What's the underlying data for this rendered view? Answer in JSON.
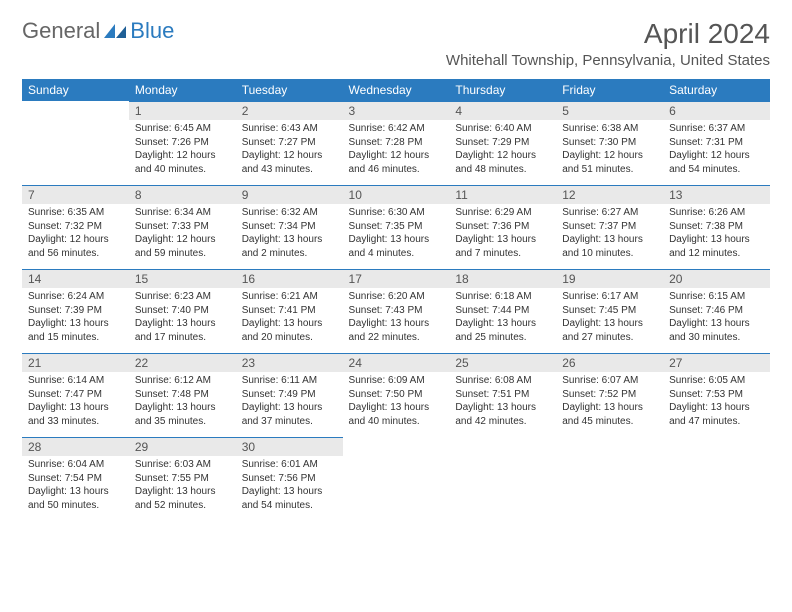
{
  "logo": {
    "text1": "General",
    "text2": "Blue"
  },
  "title": "April 2024",
  "subtitle": "Whitehall Township, Pennsylvania, United States",
  "colors": {
    "header_bg": "#2b7bbf",
    "header_fg": "#ffffff",
    "daynum_bg": "#e9e9e9",
    "daynum_fg": "#555555",
    "border": "#2b7bbf",
    "text": "#333333",
    "page_bg": "#ffffff"
  },
  "fontsize": {
    "title": 28,
    "subtitle": 15,
    "header": 12,
    "daynum": 12,
    "body": 10
  },
  "dayNames": [
    "Sunday",
    "Monday",
    "Tuesday",
    "Wednesday",
    "Thursday",
    "Friday",
    "Saturday"
  ],
  "startOffset": 1,
  "daysInMonth": 30,
  "days": {
    "1": {
      "sunrise": "6:45 AM",
      "sunset": "7:26 PM",
      "daylight": "12 hours and 40 minutes."
    },
    "2": {
      "sunrise": "6:43 AM",
      "sunset": "7:27 PM",
      "daylight": "12 hours and 43 minutes."
    },
    "3": {
      "sunrise": "6:42 AM",
      "sunset": "7:28 PM",
      "daylight": "12 hours and 46 minutes."
    },
    "4": {
      "sunrise": "6:40 AM",
      "sunset": "7:29 PM",
      "daylight": "12 hours and 48 minutes."
    },
    "5": {
      "sunrise": "6:38 AM",
      "sunset": "7:30 PM",
      "daylight": "12 hours and 51 minutes."
    },
    "6": {
      "sunrise": "6:37 AM",
      "sunset": "7:31 PM",
      "daylight": "12 hours and 54 minutes."
    },
    "7": {
      "sunrise": "6:35 AM",
      "sunset": "7:32 PM",
      "daylight": "12 hours and 56 minutes."
    },
    "8": {
      "sunrise": "6:34 AM",
      "sunset": "7:33 PM",
      "daylight": "12 hours and 59 minutes."
    },
    "9": {
      "sunrise": "6:32 AM",
      "sunset": "7:34 PM",
      "daylight": "13 hours and 2 minutes."
    },
    "10": {
      "sunrise": "6:30 AM",
      "sunset": "7:35 PM",
      "daylight": "13 hours and 4 minutes."
    },
    "11": {
      "sunrise": "6:29 AM",
      "sunset": "7:36 PM",
      "daylight": "13 hours and 7 minutes."
    },
    "12": {
      "sunrise": "6:27 AM",
      "sunset": "7:37 PM",
      "daylight": "13 hours and 10 minutes."
    },
    "13": {
      "sunrise": "6:26 AM",
      "sunset": "7:38 PM",
      "daylight": "13 hours and 12 minutes."
    },
    "14": {
      "sunrise": "6:24 AM",
      "sunset": "7:39 PM",
      "daylight": "13 hours and 15 minutes."
    },
    "15": {
      "sunrise": "6:23 AM",
      "sunset": "7:40 PM",
      "daylight": "13 hours and 17 minutes."
    },
    "16": {
      "sunrise": "6:21 AM",
      "sunset": "7:41 PM",
      "daylight": "13 hours and 20 minutes."
    },
    "17": {
      "sunrise": "6:20 AM",
      "sunset": "7:43 PM",
      "daylight": "13 hours and 22 minutes."
    },
    "18": {
      "sunrise": "6:18 AM",
      "sunset": "7:44 PM",
      "daylight": "13 hours and 25 minutes."
    },
    "19": {
      "sunrise": "6:17 AM",
      "sunset": "7:45 PM",
      "daylight": "13 hours and 27 minutes."
    },
    "20": {
      "sunrise": "6:15 AM",
      "sunset": "7:46 PM",
      "daylight": "13 hours and 30 minutes."
    },
    "21": {
      "sunrise": "6:14 AM",
      "sunset": "7:47 PM",
      "daylight": "13 hours and 33 minutes."
    },
    "22": {
      "sunrise": "6:12 AM",
      "sunset": "7:48 PM",
      "daylight": "13 hours and 35 minutes."
    },
    "23": {
      "sunrise": "6:11 AM",
      "sunset": "7:49 PM",
      "daylight": "13 hours and 37 minutes."
    },
    "24": {
      "sunrise": "6:09 AM",
      "sunset": "7:50 PM",
      "daylight": "13 hours and 40 minutes."
    },
    "25": {
      "sunrise": "6:08 AM",
      "sunset": "7:51 PM",
      "daylight": "13 hours and 42 minutes."
    },
    "26": {
      "sunrise": "6:07 AM",
      "sunset": "7:52 PM",
      "daylight": "13 hours and 45 minutes."
    },
    "27": {
      "sunrise": "6:05 AM",
      "sunset": "7:53 PM",
      "daylight": "13 hours and 47 minutes."
    },
    "28": {
      "sunrise": "6:04 AM",
      "sunset": "7:54 PM",
      "daylight": "13 hours and 50 minutes."
    },
    "29": {
      "sunrise": "6:03 AM",
      "sunset": "7:55 PM",
      "daylight": "13 hours and 52 minutes."
    },
    "30": {
      "sunrise": "6:01 AM",
      "sunset": "7:56 PM",
      "daylight": "13 hours and 54 minutes."
    }
  },
  "labels": {
    "sunrise": "Sunrise:",
    "sunset": "Sunset:",
    "daylight": "Daylight:"
  }
}
